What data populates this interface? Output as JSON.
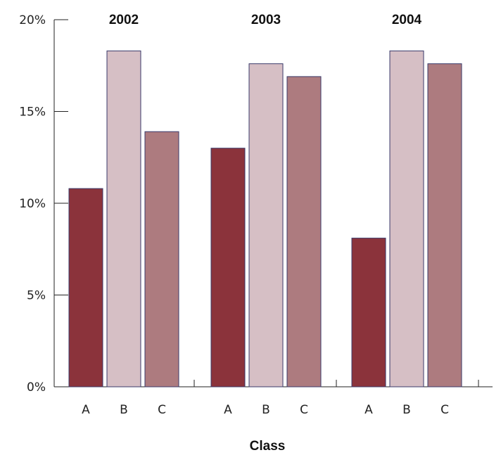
{
  "chart_data": {
    "type": "bar",
    "xlabel": "Class",
    "ylabel": "",
    "ylim": [
      0,
      20
    ],
    "yticks": [
      "0%",
      "5%",
      "10%",
      "15%",
      "20%"
    ],
    "ytick_values": [
      0,
      5,
      10,
      15,
      20
    ],
    "categories": [
      "A",
      "B",
      "C"
    ],
    "groups": [
      {
        "name": "2002",
        "values": [
          10.8,
          18.3,
          13.9
        ]
      },
      {
        "name": "2003",
        "values": [
          13.0,
          17.6,
          16.9
        ]
      },
      {
        "name": "2004",
        "values": [
          8.1,
          18.3,
          17.6
        ]
      }
    ],
    "category_colors": [
      "#8b333b",
      "#d6bfc5",
      "#ad7b7f"
    ],
    "grid": false
  }
}
